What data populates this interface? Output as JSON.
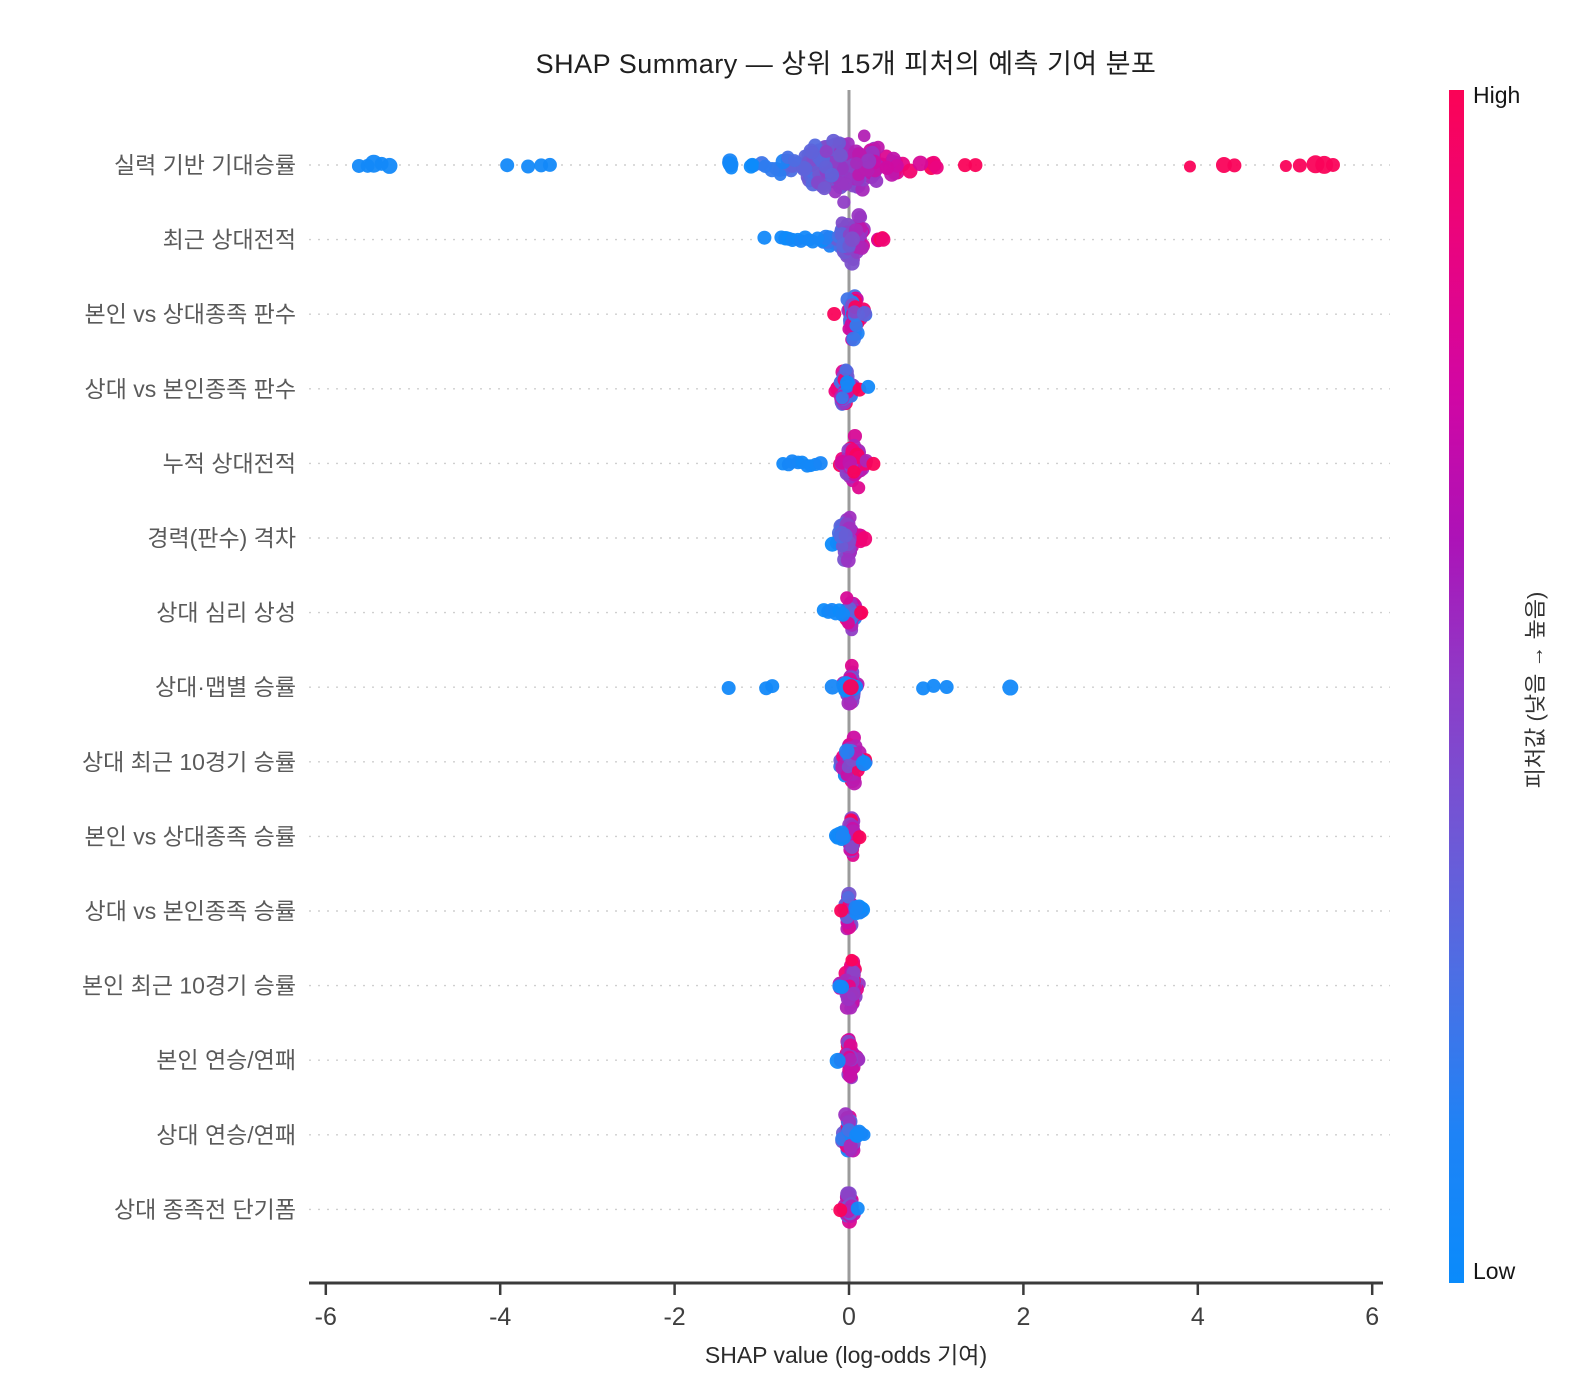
{
  "title": "SHAP Summary — 상위 15개 피처의 예측 기여 분포",
  "x_axis": {
    "label": "SHAP value (log-odds 기여)",
    "ticks": [
      -6,
      -4,
      -2,
      0,
      2,
      4,
      6
    ],
    "min": -6.2,
    "max": 6.2
  },
  "colorbar": {
    "high_label": "High",
    "low_label": "Low",
    "title": "피처값 (낮음 → 높음)",
    "gradient": [
      "#fb0356",
      "#ea047e",
      "#d206a3",
      "#ad12b7",
      "#8d3cc8",
      "#6f58d6",
      "#4a70e5",
      "#1e83f6",
      "#0a8bfb"
    ]
  },
  "colors": {
    "scale": [
      {
        "t": 0.0,
        "c": "#0d8bfb"
      },
      {
        "t": 0.22,
        "c": "#4a70e4"
      },
      {
        "t": 0.42,
        "c": "#7b52cc"
      },
      {
        "t": 0.58,
        "c": "#9c32c2"
      },
      {
        "t": 0.75,
        "c": "#cb0da4"
      },
      {
        "t": 0.88,
        "c": "#ec047f"
      },
      {
        "t": 1.0,
        "c": "#fb0357"
      }
    ],
    "grid": "#cfcfcf",
    "zero_line": "#9b9b9b",
    "axis": "#3b3b3b",
    "tick_label": "#3f3f3f",
    "y_label": "#5a5a5a",
    "title": "#1f1f1f"
  },
  "chart_data": {
    "type": "scatter",
    "subtype": "shap-beeswarm",
    "x_range": [
      -6.2,
      6.2
    ],
    "features": [
      {
        "label": "실력 기반 기대승률",
        "clusters": [
          {
            "n": 220,
            "xmin": -1.15,
            "xmax": 1.05,
            "cx": -0.05,
            "ymax": 46,
            "color": "xmix"
          },
          {
            "n": 6,
            "xmin": -1.45,
            "xmax": -1.28,
            "cx": -1.36,
            "ymax": 7,
            "color": "blue"
          }
        ],
        "streaks": [],
        "outliers": [
          {
            "x": -5.62,
            "c": "blue"
          },
          {
            "x": -5.52,
            "c": "blue"
          },
          {
            "x": -5.45,
            "c": "blue",
            "r": 9
          },
          {
            "x": -5.36,
            "c": "blue"
          },
          {
            "x": -5.27,
            "c": "blue",
            "r": 8
          },
          {
            "x": -3.92,
            "c": "blue"
          },
          {
            "x": -3.68,
            "c": "blue"
          },
          {
            "x": -3.53,
            "c": "blue"
          },
          {
            "x": -3.43,
            "c": "blue"
          },
          {
            "x": 1.33,
            "c": "red"
          },
          {
            "x": 1.45,
            "c": "red"
          },
          {
            "x": 3.91,
            "c": "red",
            "r": 6
          },
          {
            "x": 4.3,
            "c": "red",
            "r": 8
          },
          {
            "x": 4.42,
            "c": "red"
          },
          {
            "x": 5.01,
            "c": "red",
            "r": 6
          },
          {
            "x": 5.17,
            "c": "red"
          },
          {
            "x": 5.35,
            "c": "red",
            "r": 9
          },
          {
            "x": 5.45,
            "c": "red",
            "r": 9
          },
          {
            "x": 5.55,
            "c": "red"
          }
        ]
      },
      {
        "label": "최근 상대전적",
        "clusters": [
          {
            "n": 95,
            "xmin": -0.32,
            "xmax": 0.4,
            "cx": 0.03,
            "ymax": 34,
            "color": "xmix"
          }
        ],
        "streaks": [
          {
            "x1": -0.78,
            "x2": -0.36,
            "n": 10
          }
        ],
        "outliers": [
          {
            "x": -0.97,
            "c": "blue"
          }
        ]
      },
      {
        "label": "본인 vs 상대종족 판수",
        "clusters": [
          {
            "n": 60,
            "xmin": -0.07,
            "xmax": 0.2,
            "cx": 0.05,
            "ymax": 36,
            "color": "rand"
          }
        ],
        "streaks": [],
        "outliers": [
          {
            "x": -0.17,
            "c": "red"
          }
        ]
      },
      {
        "label": "상대 vs 본인종족 판수",
        "clusters": [
          {
            "n": 60,
            "xmin": -0.18,
            "xmax": 0.07,
            "cx": -0.05,
            "ymax": 36,
            "color": "rand"
          }
        ],
        "streaks": [],
        "outliers": [
          {
            "x": 0.12,
            "c": "red"
          },
          {
            "x": 0.22,
            "c": "blue"
          }
        ]
      },
      {
        "label": "누적 상대전적",
        "clusters": [
          {
            "n": 70,
            "xmin": -0.1,
            "xmax": 0.24,
            "cx": 0.05,
            "ymax": 38,
            "color": "rand_red"
          }
        ],
        "streaks": [
          {
            "x1": -0.75,
            "x2": -0.33,
            "n": 9
          }
        ],
        "outliers": [
          {
            "x": 0.28,
            "c": "red"
          }
        ]
      },
      {
        "label": "경력(판수) 격차",
        "clusters": [
          {
            "n": 70,
            "xmin": -0.24,
            "xmax": 0.2,
            "cx": -0.02,
            "ymax": 36,
            "color": "xmix"
          }
        ],
        "streaks": [],
        "outliers": []
      },
      {
        "label": "상대 심리 상성",
        "clusters": [
          {
            "n": 55,
            "xmin": -0.08,
            "xmax": 0.12,
            "cx": 0.02,
            "ymax": 32,
            "color": "rand"
          }
        ],
        "streaks": [
          {
            "x1": -0.28,
            "x2": -0.08,
            "n": 6
          }
        ],
        "outliers": [
          {
            "x": 0.14,
            "c": "red"
          }
        ]
      },
      {
        "label": "상대·맵별 승률",
        "clusters": [
          {
            "n": 50,
            "xmin": -0.06,
            "xmax": 0.1,
            "cx": 0.02,
            "ymax": 36,
            "color": "rand_purple"
          },
          {
            "n": 14,
            "xmin": -0.25,
            "xmax": 0.27,
            "cx": 0.0,
            "ymax": 5,
            "color": "blue"
          }
        ],
        "streaks": [],
        "outliers": [
          {
            "x": -1.38,
            "c": "blue"
          },
          {
            "x": -0.95,
            "c": "blue"
          },
          {
            "x": -0.88,
            "c": "blue"
          },
          {
            "x": 0.85,
            "c": "blue"
          },
          {
            "x": 0.97,
            "c": "blue"
          },
          {
            "x": 1.12,
            "c": "blue"
          },
          {
            "x": 1.85,
            "c": "blue",
            "r": 8
          },
          {
            "x": 0.02,
            "c": "red",
            "r": 8
          }
        ]
      },
      {
        "label": "상대 최근 10경기 승률",
        "clusters": [
          {
            "n": 60,
            "xmin": -0.12,
            "xmax": 0.2,
            "cx": 0.02,
            "ymax": 36,
            "color": "rand"
          }
        ],
        "streaks": [],
        "outliers": [
          {
            "x": 0.17,
            "c": "blue",
            "r": 8
          }
        ]
      },
      {
        "label": "본인 vs 상대종족 승률",
        "clusters": [
          {
            "n": 50,
            "xmin": -0.04,
            "xmax": 0.1,
            "cx": 0.03,
            "ymax": 34,
            "color": "rand_red"
          },
          {
            "n": 10,
            "xmin": -0.2,
            "xmax": -0.03,
            "cx": -0.08,
            "ymax": 8,
            "color": "blue"
          }
        ],
        "streaks": [],
        "outliers": [
          {
            "x": 0.12,
            "c": "red"
          }
        ]
      },
      {
        "label": "상대 vs 본인종족 승률",
        "clusters": [
          {
            "n": 50,
            "xmin": -0.06,
            "xmax": 0.07,
            "cx": 0.0,
            "ymax": 34,
            "color": "rand"
          },
          {
            "n": 10,
            "xmin": 0.05,
            "xmax": 0.23,
            "cx": 0.11,
            "ymax": 8,
            "color": "blue"
          }
        ],
        "streaks": [],
        "outliers": [
          {
            "x": -0.09,
            "c": "red"
          }
        ]
      },
      {
        "label": "본인 최근 10경기 승률",
        "clusters": [
          {
            "n": 60,
            "xmin": -0.12,
            "xmax": 0.16,
            "cx": 0.03,
            "ymax": 36,
            "color": "rand_red"
          }
        ],
        "streaks": [],
        "outliers": [
          {
            "x": -0.08,
            "c": "blue"
          },
          {
            "x": -0.11,
            "c": "blue"
          }
        ]
      },
      {
        "label": "본인 연승/연패",
        "clusters": [
          {
            "n": 55,
            "xmin": -0.1,
            "xmax": 0.12,
            "cx": 0.01,
            "ymax": 34,
            "color": "rand_red"
          }
        ],
        "streaks": [],
        "outliers": [
          {
            "x": -0.13,
            "c": "blue",
            "r": 8
          }
        ]
      },
      {
        "label": "상대 연승/연패",
        "clusters": [
          {
            "n": 55,
            "xmin": -0.1,
            "xmax": 0.12,
            "cx": 0.0,
            "ymax": 34,
            "color": "rand"
          },
          {
            "n": 6,
            "xmin": 0.07,
            "xmax": 0.2,
            "cx": 0.12,
            "ymax": 6,
            "color": "blue"
          }
        ],
        "streaks": [],
        "outliers": []
      },
      {
        "label": "상대 종족전 단기폼",
        "clusters": [
          {
            "n": 42,
            "xmin": -0.08,
            "xmax": 0.09,
            "cx": 0.0,
            "ymax": 28,
            "color": "rand_purple"
          }
        ],
        "streaks": [],
        "outliers": [
          {
            "x": -0.1,
            "c": "red"
          },
          {
            "x": 0.1,
            "c": "blue"
          }
        ]
      }
    ]
  }
}
